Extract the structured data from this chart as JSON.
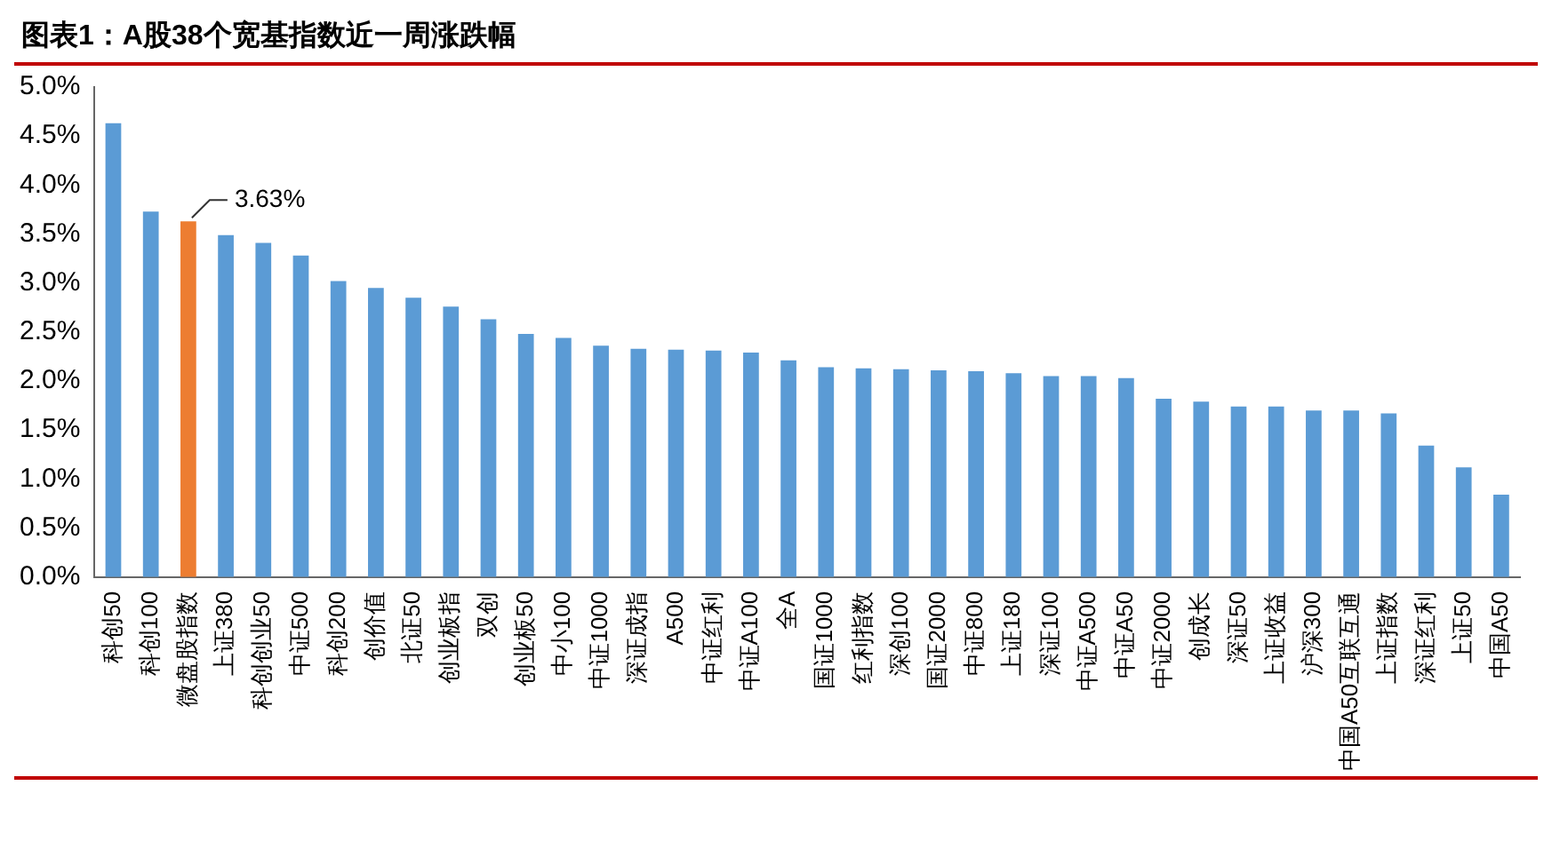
{
  "chart_data": {
    "type": "bar",
    "title": "图表1：A股38个宽基指数近一周涨跌幅",
    "categories": [
      "科创50",
      "科创100",
      "微盘股指数",
      "上证380",
      "科创创业50",
      "中证500",
      "科创200",
      "创价值",
      "北证50",
      "创业板指",
      "双创",
      "创业板50",
      "中小100",
      "中证1000",
      "深证成指",
      "A500",
      "中证红利",
      "中证A100",
      "全A",
      "国证1000",
      "红利指数",
      "深创100",
      "国证2000",
      "中证800",
      "上证180",
      "深证100",
      "中证A500",
      "中证A50",
      "中证2000",
      "创成长",
      "深证50",
      "上证收益",
      "沪深300",
      "中国A50互联互通",
      "上证指数",
      "深证红利",
      "上证50",
      "中国A50"
    ],
    "values": [
      4.63,
      3.73,
      3.63,
      3.49,
      3.41,
      3.28,
      3.02,
      2.95,
      2.85,
      2.76,
      2.63,
      2.48,
      2.44,
      2.36,
      2.33,
      2.32,
      2.31,
      2.29,
      2.21,
      2.14,
      2.13,
      2.12,
      2.11,
      2.1,
      2.08,
      2.05,
      2.05,
      2.03,
      1.82,
      1.79,
      1.74,
      1.74,
      1.7,
      1.7,
      1.67,
      1.34,
      1.12,
      0.84
    ],
    "colors": [
      "#5b9bd5",
      "#5b9bd5",
      "#ed7d31",
      "#5b9bd5",
      "#5b9bd5",
      "#5b9bd5",
      "#5b9bd5",
      "#5b9bd5",
      "#5b9bd5",
      "#5b9bd5",
      "#5b9bd5",
      "#5b9bd5",
      "#5b9bd5",
      "#5b9bd5",
      "#5b9bd5",
      "#5b9bd5",
      "#5b9bd5",
      "#5b9bd5",
      "#5b9bd5",
      "#5b9bd5",
      "#5b9bd5",
      "#5b9bd5",
      "#5b9bd5",
      "#5b9bd5",
      "#5b9bd5",
      "#5b9bd5",
      "#5b9bd5",
      "#5b9bd5",
      "#5b9bd5",
      "#5b9bd5",
      "#5b9bd5",
      "#5b9bd5",
      "#5b9bd5",
      "#5b9bd5",
      "#5b9bd5",
      "#5b9bd5",
      "#5b9bd5",
      "#5b9bd5"
    ],
    "value_labels": [
      null,
      null,
      "3.63%",
      null,
      null,
      null,
      null,
      null,
      null,
      null,
      null,
      null,
      null,
      null,
      null,
      null,
      null,
      null,
      null,
      null,
      null,
      null,
      null,
      null,
      null,
      null,
      null,
      null,
      null,
      null,
      null,
      null,
      null,
      null,
      null,
      null,
      null,
      null
    ],
    "ylim": [
      0,
      5
    ],
    "yticks": [
      {
        "value": 0,
        "label": "0.0%"
      },
      {
        "value": 0.5,
        "label": "0.5%"
      },
      {
        "value": 1,
        "label": "1.0%"
      },
      {
        "value": 1.5,
        "label": "1.5%"
      },
      {
        "value": 2,
        "label": "2.0%"
      },
      {
        "value": 2.5,
        "label": "2.5%"
      },
      {
        "value": 3,
        "label": "3.0%"
      },
      {
        "value": 3.5,
        "label": "3.5%"
      },
      {
        "value": 4,
        "label": "4.0%"
      },
      {
        "value": 4.5,
        "label": "4.5%"
      },
      {
        "value": 5,
        "label": "5.0%"
      }
    ],
    "grid": false,
    "legend": false
  }
}
